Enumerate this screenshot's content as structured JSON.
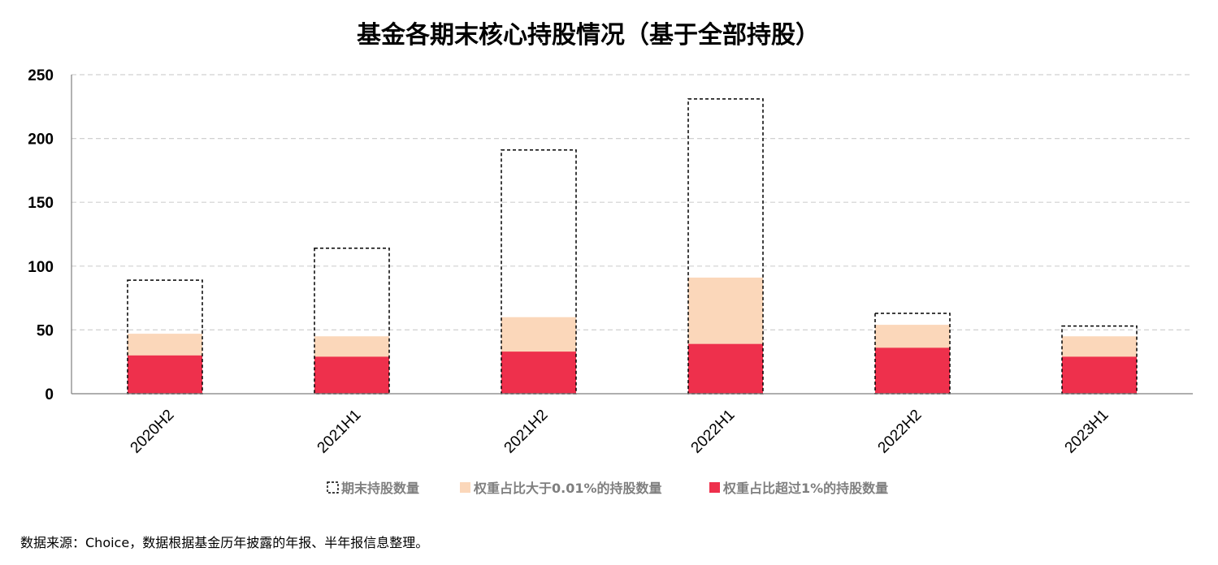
{
  "chart_data": {
    "type": "bar",
    "title": "基金各期末核心持股情况（基于全部持股）",
    "categories": [
      "2020H2",
      "2021H1",
      "2021H2",
      "2022H1",
      "2022H2",
      "2023H1"
    ],
    "series": [
      {
        "name": "期末持股数量",
        "values": [
          89,
          114,
          191,
          231,
          63,
          53
        ],
        "color": "#000000",
        "style": "dashed-outline"
      },
      {
        "name": "权重占比大于0.01%的持股数量",
        "values": [
          47,
          45,
          60,
          91,
          54,
          45
        ],
        "color": "#fbd7ba",
        "style": "filled"
      },
      {
        "name": "权重占比超过1%的持股数量",
        "values": [
          30,
          29,
          33,
          39,
          36,
          29
        ],
        "color": "#ee304c",
        "style": "filled"
      }
    ],
    "ylim": [
      0,
      250
    ],
    "yticks": [
      0,
      50,
      100,
      150,
      200,
      250
    ],
    "grid": true,
    "legend": "bottom"
  },
  "source_note": "数据来源：Choice，数据根据基金历年披露的年报、半年报信息整理。"
}
